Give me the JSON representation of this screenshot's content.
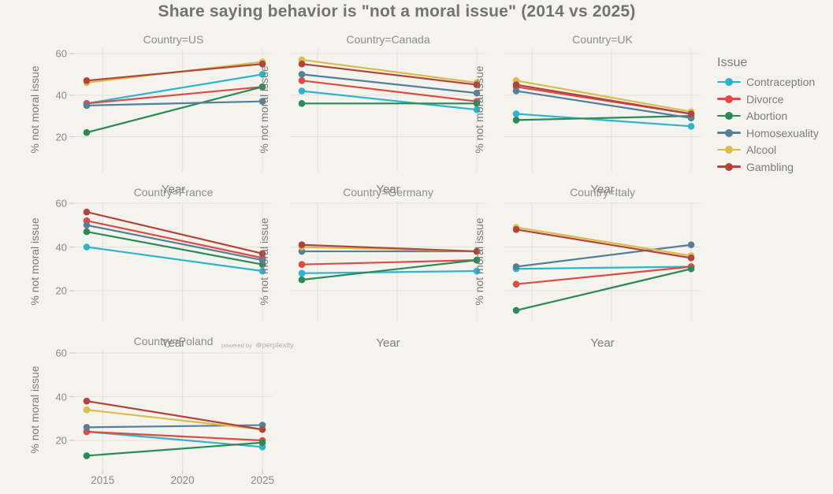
{
  "theme": {
    "background": "#f5f3ee",
    "grid_color": "#e3e0d8",
    "tick_color": "#cfccc4",
    "title_color": "#737373",
    "label_color": "#8a8a8a"
  },
  "watermark": {
    "prefix": "powered by",
    "brand": "perplexity",
    "logo_glyph": "⊛"
  },
  "chart_data": {
    "type": "line",
    "title": "Share saying behavior is \"not a moral issue\" (2014 vs 2025)",
    "legend_title": "Issue",
    "legend_position": "right",
    "xlabel": "Year",
    "ylabel": "% not moral issue",
    "x": [
      2014,
      2025
    ],
    "xticks": [
      2015,
      2020,
      2025
    ],
    "yticks": [
      20,
      40,
      60
    ],
    "grid": true,
    "series_order": [
      "Contraception",
      "Divorce",
      "Abortion",
      "Homosexuality",
      "Alcool",
      "Gambling"
    ],
    "colors": {
      "Contraception": "#2db5cd",
      "Divorce": "#dd4b43",
      "Abortion": "#2b8a57",
      "Homosexuality": "#567f99",
      "Alcool": "#d8bc4d",
      "Gambling": "#b2443c"
    },
    "facets": [
      {
        "label": "Country=US",
        "country": "US",
        "values": {
          "Contraception": [
            36,
            50
          ],
          "Divorce": [
            36,
            44
          ],
          "Abortion": [
            22,
            44
          ],
          "Homosexuality": [
            35,
            37
          ],
          "Alcool": [
            46,
            56
          ],
          "Gambling": [
            47,
            55
          ]
        }
      },
      {
        "label": "Country=Canada",
        "country": "Canada",
        "values": {
          "Contraception": [
            42,
            33
          ],
          "Divorce": [
            47,
            37
          ],
          "Abortion": [
            36,
            36
          ],
          "Homosexuality": [
            50,
            41
          ],
          "Alcool": [
            57,
            46
          ],
          "Gambling": [
            55,
            45
          ]
        }
      },
      {
        "label": "Country=UK",
        "country": "UK",
        "values": {
          "Contraception": [
            31,
            25
          ],
          "Divorce": [
            44,
            31
          ],
          "Abortion": [
            28,
            30
          ],
          "Homosexuality": [
            42,
            29
          ],
          "Alcool": [
            47,
            32
          ],
          "Gambling": [
            45,
            31
          ]
        }
      },
      {
        "label": "Country=France",
        "country": "France",
        "values": {
          "Contraception": [
            40,
            29
          ],
          "Divorce": [
            52,
            35
          ],
          "Abortion": [
            47,
            32
          ],
          "Homosexuality": [
            50,
            34
          ],
          "Alcool": null,
          "Gambling": [
            56,
            37
          ]
        }
      },
      {
        "label": "Country=Germany",
        "country": "Germany",
        "values": {
          "Contraception": [
            28,
            29
          ],
          "Divorce": [
            32,
            34
          ],
          "Abortion": [
            25,
            34
          ],
          "Homosexuality": [
            38,
            38
          ],
          "Alcool": [
            40,
            38
          ],
          "Gambling": [
            41,
            38
          ]
        }
      },
      {
        "label": "Country=Italy",
        "country": "Italy",
        "values": {
          "Contraception": [
            30,
            31
          ],
          "Divorce": [
            23,
            31
          ],
          "Abortion": [
            11,
            30
          ],
          "Homosexuality": [
            31,
            41
          ],
          "Alcool": [
            49,
            36
          ],
          "Gambling": [
            48,
            35
          ]
        }
      },
      {
        "label": "Country=Poland",
        "country": "Poland",
        "values": {
          "Contraception": [
            24,
            17
          ],
          "Divorce": [
            24,
            20
          ],
          "Abortion": [
            13,
            19
          ],
          "Homosexuality": [
            26,
            27
          ],
          "Alcool": [
            34,
            25
          ],
          "Gambling": [
            38,
            25
          ]
        }
      }
    ]
  }
}
